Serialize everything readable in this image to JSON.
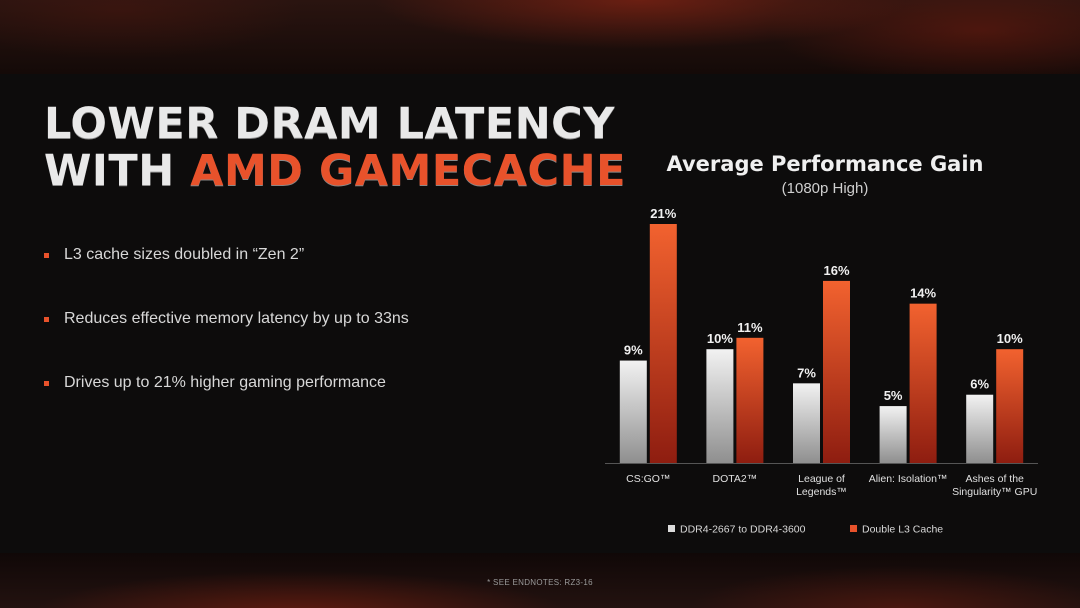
{
  "slide": {
    "title_line1": "LOWER DRAM LATENCY",
    "title_line2_prefix": "WITH ",
    "title_line2_accent": "AMD GAMECACHE",
    "bullets": [
      "L3 cache sizes doubled in “Zen 2”",
      "Reduces effective memory latency by up to 33ns",
      "Drives up to 21% higher gaming performance"
    ],
    "footnote": "* SEE ENDNOTES: RZ3-16",
    "accent_color": "#e8522b"
  },
  "chart_data": {
    "type": "bar",
    "title": "Average Performance Gain",
    "subtitle": "(1080p High)",
    "categories": [
      [
        "CS:GO™"
      ],
      [
        "DOTA2™"
      ],
      [
        "League of",
        "Legends™"
      ],
      [
        "Alien: Isolation™"
      ],
      [
        "Ashes of the",
        "Singularity™ GPU"
      ]
    ],
    "series": [
      {
        "name": "DDR4-2667 to DDR4-3600",
        "values": [
          9,
          10,
          7,
          5,
          6
        ],
        "labels": [
          "9%",
          "10%",
          "7%",
          "5%",
          "6%"
        ],
        "color": "#d9d9d9"
      },
      {
        "name": "Double L3 Cache",
        "values": [
          21,
          11,
          16,
          14,
          10
        ],
        "labels": [
          "21%",
          "11%",
          "16%",
          "14%",
          "10%"
        ],
        "color": "#e8522b"
      }
    ],
    "ylim": [
      0,
      21
    ],
    "legend": "bottom",
    "grid": false
  }
}
